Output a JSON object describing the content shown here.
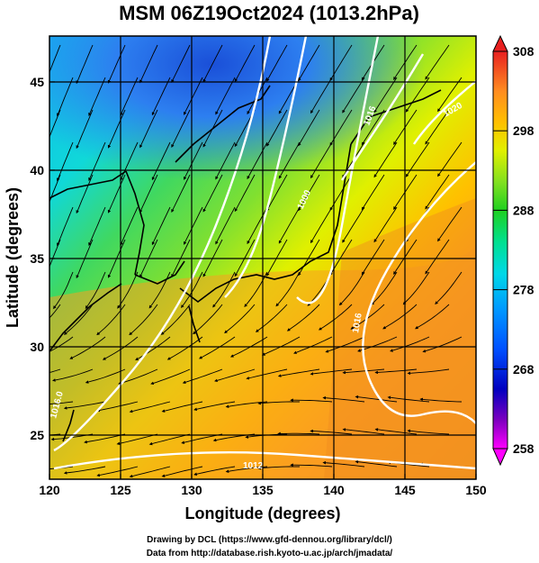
{
  "title": "MSM 06Z19Oct2024 (1013.2hPa)",
  "x_axis": {
    "label": "Longitude (degrees)",
    "range": [
      120,
      150
    ],
    "ticks": [
      "120",
      "125",
      "130",
      "135",
      "140",
      "145",
      "150"
    ]
  },
  "y_axis": {
    "label": "Latitude  (degrees)",
    "range": [
      22.5,
      47.6
    ],
    "ticks": [
      "25",
      "30",
      "35",
      "40",
      "45"
    ]
  },
  "colorbar": {
    "min": 258,
    "max": 308,
    "ticks": [
      "308",
      "298",
      "288",
      "278",
      "268",
      "258"
    ],
    "colors": [
      "#ff00ff",
      "#8000c0",
      "#0000c0",
      "#0040ff",
      "#0090ff",
      "#00d0f0",
      "#00e0a0",
      "#20d020",
      "#80e020",
      "#e0f000",
      "#ffc000",
      "#ff9020",
      "#ff4020",
      "#e02020"
    ]
  },
  "contours": {
    "color": "#ffffff",
    "labels": [
      "1000",
      "1016",
      "1020",
      "1016",
      "1012",
      "1016.0"
    ]
  },
  "credits": {
    "line1": "Drawing by DCL (https://www.gfd-dennou.org/library/dcl/)",
    "line2": "Data from http://database.rish.kyoto-u.ac.jp/arch/jmadata/"
  }
}
